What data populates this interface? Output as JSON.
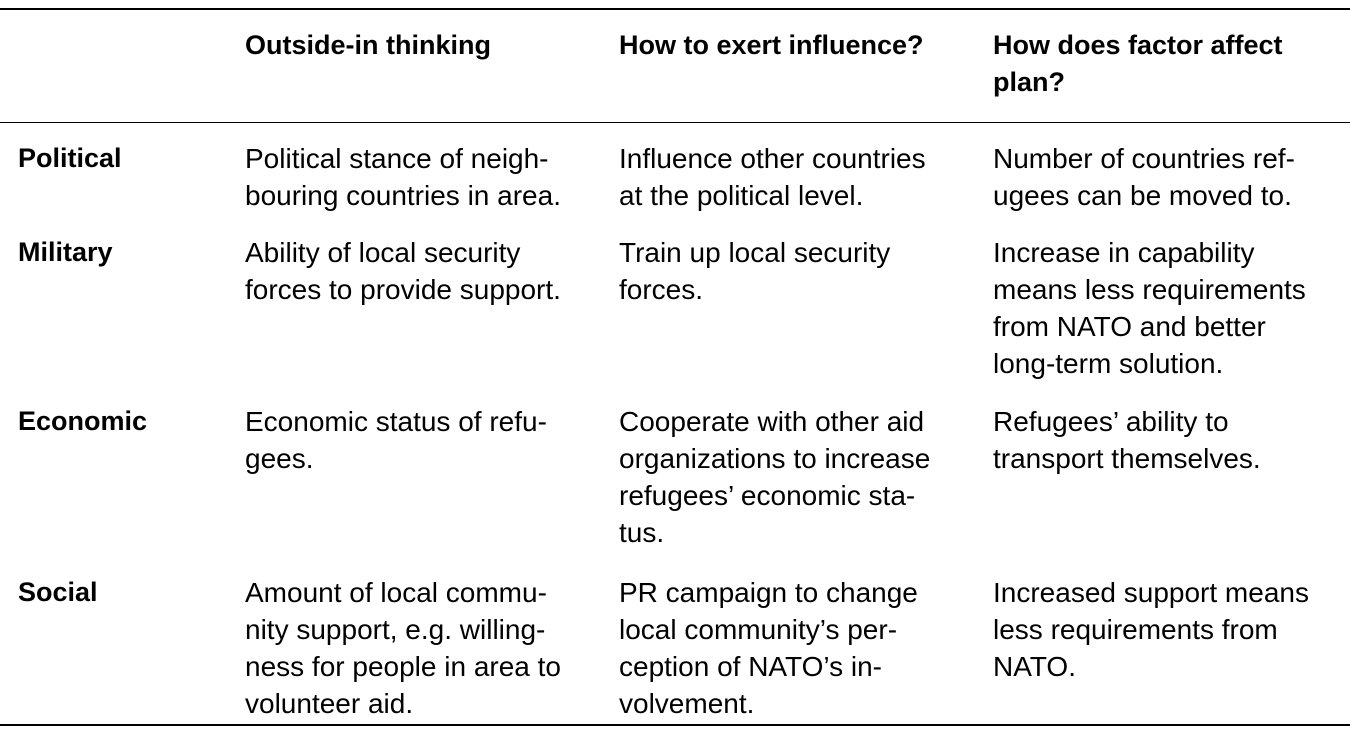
{
  "table": {
    "headers": [
      "",
      "Outside-in thinking",
      "How to exert influence?",
      "How does factor affect\nplan?"
    ],
    "rows": [
      {
        "factor": "Political",
        "outside_in": "Political stance of neigh-\nbouring countries in area.",
        "influence": "Influence other countries\nat the political level.",
        "affect": "Number of countries ref-\nugees can be moved to."
      },
      {
        "factor": "Military",
        "outside_in": "Ability of local security\nforces to provide support.",
        "influence": "Train up local security\nforces.",
        "affect": "Increase in capability\nmeans less requirements\nfrom NATO and better\nlong-term solution."
      },
      {
        "factor": "Economic",
        "outside_in": "Economic status of refu-\ngees.",
        "influence": "Cooperate with other aid\norganizations to increase\nrefugees’ economic sta-\ntus.",
        "affect": "Refugees’ ability to\ntransport themselves."
      },
      {
        "factor": "Social",
        "outside_in": "Amount of local commu-\nnity support, e.g. willing-\nness for people in area to\nvolunteer aid.",
        "influence": "PR campaign to change\nlocal community’s per-\nception of NATO’s in-\nvolvement.",
        "affect": "Increased support means\nless requirements from\nNATO."
      }
    ]
  }
}
